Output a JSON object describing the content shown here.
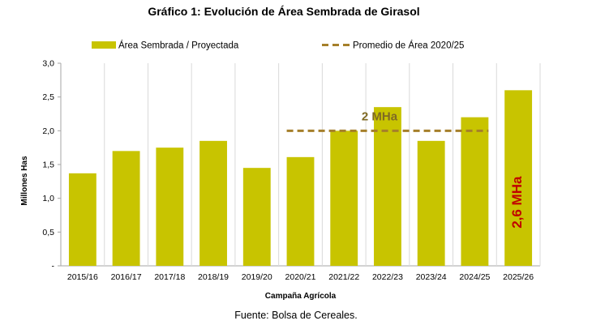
{
  "chart_data": {
    "type": "bar",
    "title": "Gráfico 1: Evolución de Área Sembrada de Girasol",
    "xlabel": "Campaña Agrícola",
    "ylabel": "Millones Has",
    "categories": [
      "2015/16",
      "2016/17",
      "2017/18",
      "2018/19",
      "2019/20",
      "2020/21",
      "2021/22",
      "2022/23",
      "2023/24",
      "2024/25",
      "2025/26"
    ],
    "series": [
      {
        "name": "Área Sembrada / Proyectada",
        "values": [
          1.37,
          1.7,
          1.75,
          1.85,
          1.45,
          1.61,
          2.0,
          2.35,
          1.85,
          2.2,
          2.6
        ],
        "color": "#c8c400"
      }
    ],
    "reference_line": {
      "name": "Promedio de Área 2020/25",
      "value": 2.0,
      "from": "2020/21",
      "to": "2024/25",
      "color": "#a57f2a",
      "style": "dashed"
    },
    "ylim": [
      0,
      3.0
    ],
    "yticks": [
      "-",
      "0,5",
      "1,0",
      "1,5",
      "2,0",
      "2,5",
      "3,0"
    ],
    "grid": true,
    "grid_axis": "x",
    "legend_position": "top",
    "annotations": [
      {
        "text": "2 MHa",
        "target": "reference_line",
        "color": "#7f6a24"
      },
      {
        "text": "2,6 MHa",
        "target": "2025/26",
        "color": "#c00000",
        "orientation": "vertical"
      }
    ]
  },
  "source": "Fuente: Bolsa de Cereales."
}
